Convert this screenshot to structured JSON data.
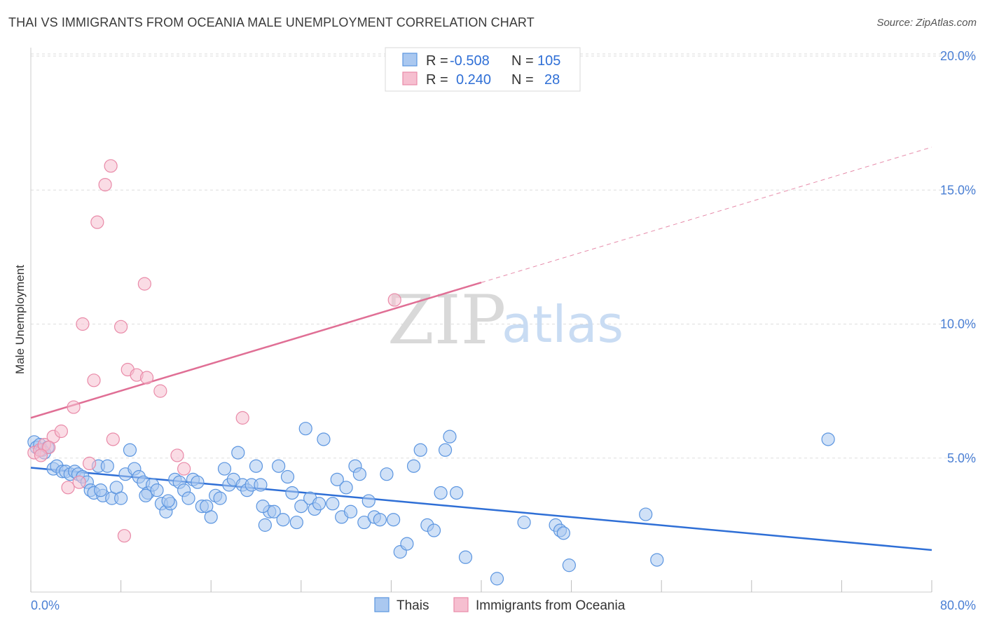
{
  "title": "THAI VS IMMIGRANTS FROM OCEANIA MALE UNEMPLOYMENT CORRELATION CHART",
  "source": "Source: ZipAtlas.com",
  "colors": {
    "blue": "#5b95e0",
    "blue_fill": "#aac8f0",
    "blue_line": "#2f6fd6",
    "pink": "#e98aa8",
    "pink_fill": "#f6bfd0",
    "pink_line": "#e06f95",
    "tick_text": "#4a7fd4",
    "grid": "#dddddd"
  },
  "legend_top": {
    "rows": [
      {
        "r_label": "R =",
        "r_value": "-0.508",
        "n_label": "N =",
        "n_value": "105",
        "series": "blue"
      },
      {
        "r_label": "R =",
        "r_value": "0.240",
        "n_label": "N =",
        "n_value": "28",
        "series": "pink"
      }
    ]
  },
  "legend_bottom": [
    "Thais",
    "Immigrants from Oceania"
  ],
  "watermark": {
    "zip": "ZIP",
    "atlas": "atlas"
  },
  "chart_data": {
    "type": "scatter",
    "title": "THAI VS IMMIGRANTS FROM OCEANIA MALE UNEMPLOYMENT CORRELATION CHART",
    "xlabel": "",
    "ylabel": "Male Unemployment",
    "xlim": [
      0,
      80
    ],
    "ylim": [
      0,
      20
    ],
    "x_tick_labels": [
      {
        "value": 0,
        "label": "0.0%"
      },
      {
        "value": 80,
        "label": "80.0%"
      }
    ],
    "y_tick_labels": [
      {
        "value": 5,
        "label": "5.0%"
      },
      {
        "value": 10,
        "label": "10.0%"
      },
      {
        "value": 15,
        "label": "15.0%"
      },
      {
        "value": 20,
        "label": "20.0%"
      }
    ],
    "series": [
      {
        "name": "Thais",
        "color": "blue",
        "R": -0.508,
        "N": 105,
        "trend": {
          "x0": 0,
          "y0": 4.64,
          "x1": 80,
          "y1": 1.57,
          "dashed_from": null
        },
        "points": [
          [
            0.3,
            5.6
          ],
          [
            0.5,
            5.4
          ],
          [
            0.8,
            5.5
          ],
          [
            1.0,
            5.3
          ],
          [
            1.2,
            5.2
          ],
          [
            1.5,
            5.4
          ],
          [
            2.0,
            4.6
          ],
          [
            2.3,
            4.7
          ],
          [
            2.8,
            4.5
          ],
          [
            3.1,
            4.5
          ],
          [
            3.5,
            4.4
          ],
          [
            3.9,
            4.5
          ],
          [
            4.2,
            4.4
          ],
          [
            4.6,
            4.3
          ],
          [
            5.0,
            4.1
          ],
          [
            5.3,
            3.8
          ],
          [
            5.6,
            3.7
          ],
          [
            6.0,
            4.7
          ],
          [
            6.4,
            3.6
          ],
          [
            6.8,
            4.7
          ],
          [
            7.2,
            3.5
          ],
          [
            7.6,
            3.9
          ],
          [
            8.0,
            3.5
          ],
          [
            8.4,
            4.4
          ],
          [
            8.8,
            5.3
          ],
          [
            9.2,
            4.6
          ],
          [
            9.6,
            4.3
          ],
          [
            10.0,
            4.1
          ],
          [
            10.4,
            3.7
          ],
          [
            10.8,
            4.0
          ],
          [
            11.2,
            3.8
          ],
          [
            11.6,
            3.3
          ],
          [
            12.0,
            3.0
          ],
          [
            12.4,
            3.3
          ],
          [
            12.8,
            4.2
          ],
          [
            13.2,
            4.1
          ],
          [
            13.6,
            3.8
          ],
          [
            14.0,
            3.5
          ],
          [
            14.4,
            4.2
          ],
          [
            14.8,
            4.1
          ],
          [
            15.2,
            3.2
          ],
          [
            15.6,
            3.2
          ],
          [
            16.0,
            2.8
          ],
          [
            16.4,
            3.6
          ],
          [
            16.8,
            3.5
          ],
          [
            17.2,
            4.6
          ],
          [
            17.6,
            4.0
          ],
          [
            18.0,
            4.2
          ],
          [
            18.4,
            5.2
          ],
          [
            18.8,
            4.0
          ],
          [
            19.2,
            3.8
          ],
          [
            19.6,
            4.0
          ],
          [
            20.0,
            4.7
          ],
          [
            20.4,
            4.0
          ],
          [
            20.8,
            2.5
          ],
          [
            21.2,
            3.0
          ],
          [
            21.6,
            3.0
          ],
          [
            22.0,
            4.7
          ],
          [
            22.4,
            2.7
          ],
          [
            22.8,
            4.3
          ],
          [
            23.2,
            3.7
          ],
          [
            23.6,
            2.6
          ],
          [
            24.0,
            3.2
          ],
          [
            24.4,
            6.1
          ],
          [
            24.8,
            3.5
          ],
          [
            25.2,
            3.1
          ],
          [
            25.6,
            3.3
          ],
          [
            26.0,
            5.7
          ],
          [
            26.8,
            3.3
          ],
          [
            27.2,
            4.2
          ],
          [
            27.6,
            2.8
          ],
          [
            28.0,
            3.9
          ],
          [
            28.4,
            3.0
          ],
          [
            28.8,
            4.7
          ],
          [
            29.2,
            4.4
          ],
          [
            29.6,
            2.6
          ],
          [
            30.0,
            3.4
          ],
          [
            30.5,
            2.8
          ],
          [
            31.0,
            2.7
          ],
          [
            31.6,
            4.4
          ],
          [
            32.2,
            2.7
          ],
          [
            32.8,
            1.5
          ],
          [
            33.4,
            1.8
          ],
          [
            34.0,
            4.7
          ],
          [
            34.6,
            5.3
          ],
          [
            35.2,
            2.5
          ],
          [
            35.8,
            2.3
          ],
          [
            36.4,
            3.7
          ],
          [
            36.8,
            5.3
          ],
          [
            37.2,
            5.8
          ],
          [
            37.8,
            3.7
          ],
          [
            38.6,
            1.3
          ],
          [
            41.4,
            0.5
          ],
          [
            43.8,
            2.6
          ],
          [
            46.6,
            2.5
          ],
          [
            47.0,
            2.3
          ],
          [
            47.3,
            2.2
          ],
          [
            47.8,
            1.0
          ],
          [
            54.6,
            2.9
          ],
          [
            55.6,
            1.2
          ],
          [
            70.8,
            5.7
          ],
          [
            6.2,
            3.8
          ],
          [
            10.2,
            3.6
          ],
          [
            12.2,
            3.4
          ],
          [
            20.6,
            3.2
          ]
        ]
      },
      {
        "name": "Immigrants from Oceania",
        "color": "pink",
        "R": 0.24,
        "N": 28,
        "trend": {
          "x0": 0,
          "y0": 6.5,
          "x1": 80,
          "y1": 16.6,
          "dashed_from": 40
        },
        "points": [
          [
            0.3,
            5.2
          ],
          [
            0.8,
            5.3
          ],
          [
            1.2,
            5.5
          ],
          [
            2.0,
            5.8
          ],
          [
            2.7,
            6.0
          ],
          [
            3.3,
            3.9
          ],
          [
            3.8,
            6.9
          ],
          [
            4.3,
            4.1
          ],
          [
            4.6,
            10.0
          ],
          [
            5.2,
            4.8
          ],
          [
            5.6,
            7.9
          ],
          [
            5.9,
            13.8
          ],
          [
            6.6,
            15.2
          ],
          [
            7.1,
            15.9
          ],
          [
            7.3,
            5.7
          ],
          [
            8.0,
            9.9
          ],
          [
            8.3,
            2.1
          ],
          [
            8.6,
            8.3
          ],
          [
            9.4,
            8.1
          ],
          [
            10.1,
            11.5
          ],
          [
            10.3,
            8.0
          ],
          [
            11.5,
            7.5
          ],
          [
            13.0,
            5.1
          ],
          [
            13.6,
            4.6
          ],
          [
            18.8,
            6.5
          ],
          [
            32.3,
            10.9
          ],
          [
            1.6,
            5.4
          ],
          [
            0.9,
            5.1
          ]
        ]
      }
    ]
  }
}
